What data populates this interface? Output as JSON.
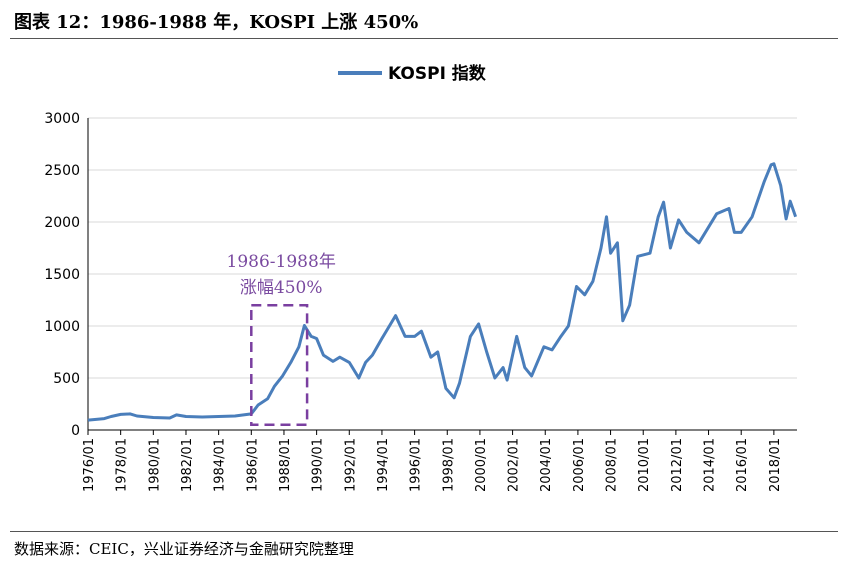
{
  "figure": {
    "title": "图表 12：1986-1988 年，KOSPI 上涨 450%",
    "source": "数据来源：CEIC，兴业证券经济与金融研究院整理"
  },
  "colors": {
    "series": "#4a7ebb",
    "annotation": "#7a3fa0",
    "grid": "#d9d9d9"
  },
  "chart_data": {
    "type": "line",
    "title": "",
    "xlabel": "",
    "ylabel": "",
    "ylim": [
      0,
      3000
    ],
    "yticks": [
      "0",
      "500",
      "1000",
      "1500",
      "2000",
      "2500",
      "3000"
    ],
    "xticks": [
      "1976/01",
      "1978/01",
      "1980/01",
      "1982/01",
      "1984/01",
      "1986/01",
      "1988/01",
      "1990/01",
      "1992/01",
      "1994/01",
      "1996/01",
      "1998/01",
      "2000/01",
      "2002/01",
      "2004/01",
      "2006/01",
      "2008/01",
      "2010/01",
      "2012/01",
      "2014/01",
      "2016/01",
      "2018/01"
    ],
    "xlim": [
      "1976/01",
      "2019/06"
    ],
    "grid": true,
    "legend_position": "top-center",
    "series": [
      {
        "name": "KOSPI 指数",
        "points": [
          [
            "1976/01",
            95
          ],
          [
            "1977/01",
            110
          ],
          [
            "1977/06",
            130
          ],
          [
            "1978/01",
            150
          ],
          [
            "1978/08",
            155
          ],
          [
            "1979/01",
            135
          ],
          [
            "1980/01",
            120
          ],
          [
            "1981/01",
            115
          ],
          [
            "1981/06",
            145
          ],
          [
            "1982/01",
            130
          ],
          [
            "1983/01",
            125
          ],
          [
            "1984/01",
            130
          ],
          [
            "1985/01",
            135
          ],
          [
            "1986/01",
            155
          ],
          [
            "1986/06",
            240
          ],
          [
            "1987/01",
            300
          ],
          [
            "1987/06",
            420
          ],
          [
            "1987/12",
            520
          ],
          [
            "1988/06",
            650
          ],
          [
            "1988/12",
            800
          ],
          [
            "1989/04",
            1005
          ],
          [
            "1989/09",
            900
          ],
          [
            "1990/01",
            880
          ],
          [
            "1990/06",
            720
          ],
          [
            "1991/01",
            660
          ],
          [
            "1991/06",
            700
          ],
          [
            "1992/01",
            650
          ],
          [
            "1992/08",
            500
          ],
          [
            "1993/01",
            650
          ],
          [
            "1993/06",
            720
          ],
          [
            "1994/01",
            880
          ],
          [
            "1994/11",
            1100
          ],
          [
            "1995/06",
            900
          ],
          [
            "1996/01",
            900
          ],
          [
            "1996/06",
            950
          ],
          [
            "1997/01",
            700
          ],
          [
            "1997/06",
            750
          ],
          [
            "1997/12",
            400
          ],
          [
            "1998/06",
            310
          ],
          [
            "1998/10",
            450
          ],
          [
            "1999/06",
            900
          ],
          [
            "1999/12",
            1020
          ],
          [
            "2000/06",
            750
          ],
          [
            "2000/12",
            500
          ],
          [
            "2001/06",
            600
          ],
          [
            "2001/09",
            480
          ],
          [
            "2002/04",
            900
          ],
          [
            "2002/10",
            600
          ],
          [
            "2003/03",
            520
          ],
          [
            "2003/12",
            800
          ],
          [
            "2004/06",
            770
          ],
          [
            "2004/12",
            890
          ],
          [
            "2005/06",
            1000
          ],
          [
            "2005/12",
            1380
          ],
          [
            "2006/06",
            1300
          ],
          [
            "2006/12",
            1430
          ],
          [
            "2007/06",
            1750
          ],
          [
            "2007/10",
            2050
          ],
          [
            "2008/01",
            1700
          ],
          [
            "2008/06",
            1800
          ],
          [
            "2008/10",
            1050
          ],
          [
            "2009/03",
            1200
          ],
          [
            "2009/09",
            1670
          ],
          [
            "2010/06",
            1700
          ],
          [
            "2010/12",
            2050
          ],
          [
            "2011/04",
            2190
          ],
          [
            "2011/09",
            1750
          ],
          [
            "2012/03",
            2020
          ],
          [
            "2012/09",
            1900
          ],
          [
            "2013/06",
            1800
          ],
          [
            "2014/01",
            1950
          ],
          [
            "2014/07",
            2080
          ],
          [
            "2015/04",
            2130
          ],
          [
            "2015/08",
            1900
          ],
          [
            "2016/01",
            1900
          ],
          [
            "2016/09",
            2050
          ],
          [
            "2017/06",
            2390
          ],
          [
            "2017/11",
            2550
          ],
          [
            "2018/01",
            2560
          ],
          [
            "2018/06",
            2350
          ],
          [
            "2018/10",
            2030
          ],
          [
            "2019/01",
            2200
          ],
          [
            "2019/05",
            2050
          ]
        ]
      }
    ],
    "annotations": [
      {
        "text_line1": "1986-1988年",
        "text_line2": "涨幅450%",
        "x_from": "1986/01",
        "x_to": "1989/06",
        "y_from": 50,
        "y_to": 1200
      }
    ]
  }
}
